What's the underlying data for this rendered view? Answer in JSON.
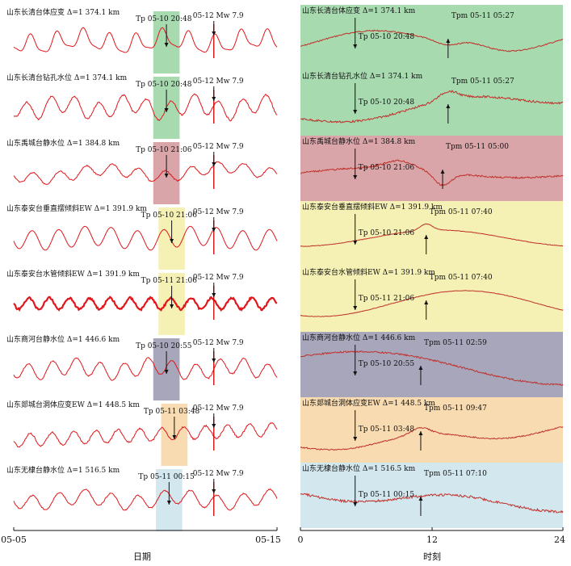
{
  "chart_data": {
    "type": "line",
    "left_panel": {
      "xlabel": "日期",
      "x_ticks": [
        "05-05",
        "05-15"
      ],
      "x_range_days": [
        0,
        10
      ],
      "event_label": "05-12 Mw 7.9",
      "event_day": 7.6
    },
    "right_panel": {
      "xlabel": "时刻",
      "x_ticks": [
        "0",
        "12",
        "24"
      ],
      "x_range_hours": [
        0,
        24
      ]
    },
    "stations": [
      {
        "label": "山东长清台体应变 Δ=1 374.1 km",
        "tp": "Tp 05-10 20:48",
        "tpm": "Tpm 05-11 05:27",
        "tp_hour": 5,
        "tpm_hour": 13.5,
        "band_days": [
          5.3,
          6.3
        ],
        "color": "#a8dab0",
        "style": "strain"
      },
      {
        "label": "山东长清台钻孔水位 Δ=1 374.1 km",
        "tp": "Tp 05-10 20:48",
        "tpm": "Tpm 05-11 05:27",
        "tp_hour": 5,
        "tpm_hour": 13.5,
        "band_days": [
          5.3,
          6.3
        ],
        "color": "#a8dab0",
        "style": "borehole"
      },
      {
        "label": "山东禹城台静水位 Δ=1 384.8 km",
        "tp": "Tp 05-10 21:06",
        "tpm": "Tpm 05-11 05:00",
        "tp_hour": 5,
        "tpm_hour": 13.0,
        "band_days": [
          5.3,
          6.3
        ],
        "color": "#d9a5a8",
        "style": "yucheng"
      },
      {
        "label": "山东泰安台垂直摆倾斜EW Δ=1 391.9 km",
        "tp": "Tp 05-10 21:06",
        "tpm": "Tpm 05-11 07:40",
        "tp_hour": 5,
        "tpm_hour": 11.5,
        "band_days": [
          5.5,
          6.5
        ],
        "color": "#f5f0b4",
        "style": "pendulum"
      },
      {
        "label": "山东泰安台水管倾斜EW Δ=1 391.9 km",
        "tp": "Tp 05-11 21:06",
        "tpm": "Tpm 05-11 07:40",
        "tp_hour": 5,
        "tpm_hour": 11.5,
        "band_days": [
          5.5,
          6.5
        ],
        "color": "#f5f0b4",
        "style": "watertube"
      },
      {
        "label": "山东商河台静水位 Δ=1 446.6 km",
        "tp": "Tp 05-10 20:55",
        "tpm": "Tpm 05-11 02:59",
        "tp_hour": 5,
        "tpm_hour": 11.0,
        "band_days": [
          5.3,
          6.3
        ],
        "color": "#a7a6bb",
        "style": "shanghe"
      },
      {
        "label": "山东郯城台洞体应变EW Δ=1 448.5 km",
        "tp": "Tp 05-11 03:48",
        "tpm": "Tpm 05-11 09:47",
        "tp_hour": 5,
        "tpm_hour": 11.0,
        "band_days": [
          5.6,
          6.6
        ],
        "color": "#f8dbb0",
        "style": "tancheng"
      },
      {
        "label": "山东无棣台静水位 Δ=1 516.5 km",
        "tp": "Tp 05-11 00:15",
        "tpm": "Tpm 05-11 07:10",
        "tp_hour": 5,
        "tpm_hour": 11.0,
        "band_days": [
          5.4,
          6.4
        ],
        "color": "#d3e7ee",
        "style": "wudi"
      }
    ]
  }
}
